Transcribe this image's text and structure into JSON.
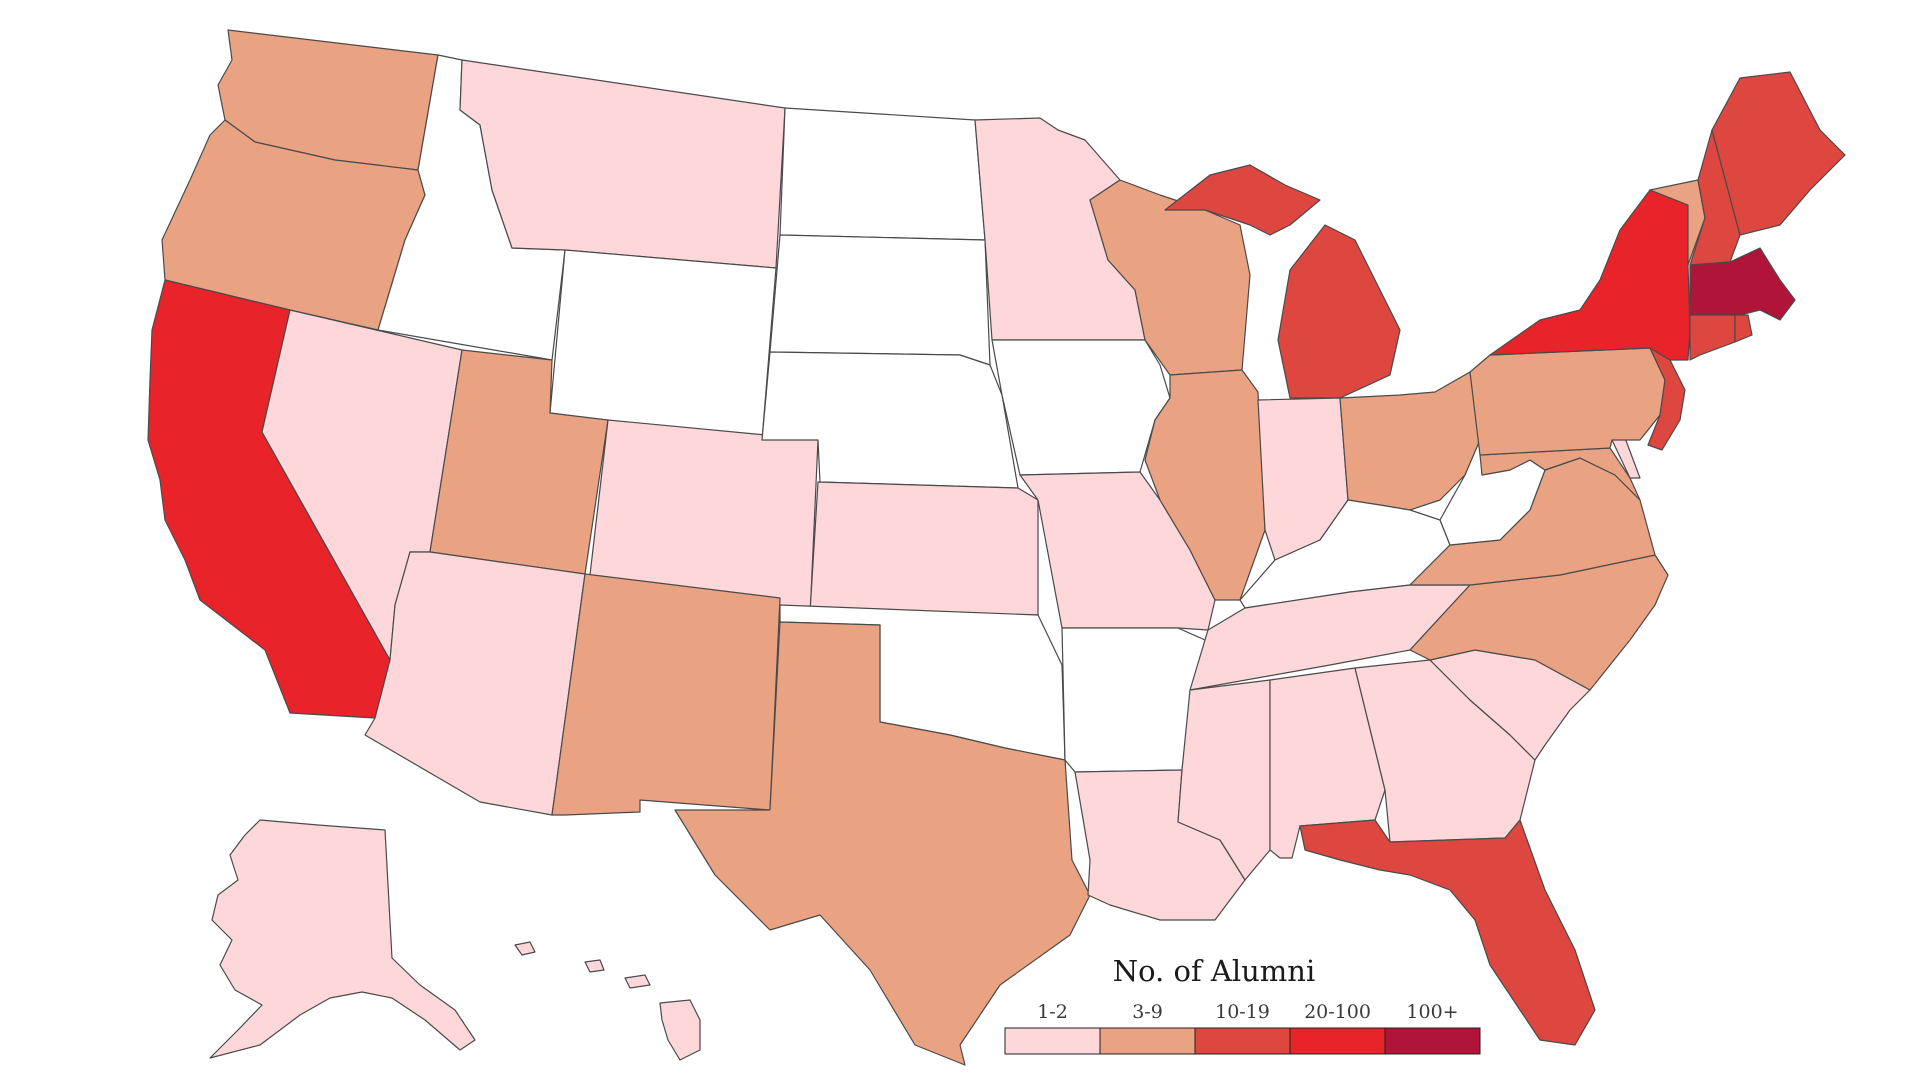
{
  "legend": {
    "title": "No. of Alumni",
    "bins": [
      {
        "label": "1-2",
        "color": "#fdd7d9"
      },
      {
        "label": "3-9",
        "color": "#e9a383"
      },
      {
        "label": "10-19",
        "color": "#de4640"
      },
      {
        "label": "20-100",
        "color": "#e8232a"
      },
      {
        "label": "100+",
        "color": "#b01539"
      }
    ],
    "none_color": "#ffffff"
  },
  "states": {
    "WA": 1,
    "OR": 1,
    "CA": 3,
    "ID": -1,
    "NV": 0,
    "MT": 0,
    "WY": -1,
    "UT": 1,
    "AZ": 0,
    "CO": 0,
    "NM": 1,
    "ND": -1,
    "SD": -1,
    "NE": -1,
    "KS": 0,
    "OK": -1,
    "TX": 1,
    "MN": 0,
    "IA": -1,
    "MO": 0,
    "AR": -1,
    "LA": 0,
    "WI": 1,
    "IL": 1,
    "MI": 2,
    "IN": 0,
    "OH": 1,
    "KY": -1,
    "TN": 0,
    "MS": 0,
    "AL": 0,
    "GA": 0,
    "FL": 2,
    "SC": 0,
    "NC": 1,
    "VA": 1,
    "WV": -1,
    "MD": 1,
    "DE": 0,
    "NJ": 2,
    "PA": 1,
    "NY": 3,
    "CT": 2,
    "RI": 2,
    "MA": 4,
    "VT": 1,
    "NH": 2,
    "ME": 2,
    "AK": 0,
    "HI": 0
  }
}
